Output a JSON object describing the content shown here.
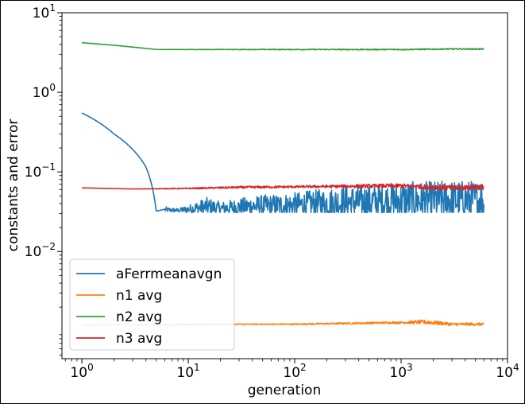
{
  "chart_data": {
    "type": "line",
    "title": "",
    "xlabel": "generation",
    "ylabel": "constants and error",
    "xscale": "log",
    "yscale": "log",
    "xlim": [
      0.65,
      10000
    ],
    "ylim": [
      0.00045,
      10
    ],
    "grid": false,
    "legend_position": "lower-left",
    "x_ticks": [
      {
        "value": 1,
        "base": "10",
        "exp": "0"
      },
      {
        "value": 10,
        "base": "10",
        "exp": "1"
      },
      {
        "value": 100,
        "base": "10",
        "exp": "2"
      },
      {
        "value": 1000,
        "base": "10",
        "exp": "3"
      },
      {
        "value": 10000,
        "base": "10",
        "exp": "4"
      }
    ],
    "y_ticks": [
      {
        "value": 10,
        "base": "10",
        "exp": "1"
      },
      {
        "value": 1,
        "base": "10",
        "exp": "0"
      },
      {
        "value": 0.1,
        "base": "10",
        "exp": "−1"
      },
      {
        "value": 0.01,
        "base": "10",
        "exp": "−2"
      }
    ],
    "series": [
      {
        "name": "aFerrmeanavgn",
        "color": "#1f77b4",
        "x": [
          1,
          2,
          4,
          5,
          6,
          8,
          10,
          15,
          20,
          40,
          100,
          300,
          1000,
          3000,
          6000
        ],
        "y": [
          0.55,
          0.3,
          0.115,
          0.032,
          0.034,
          0.032,
          0.033,
          0.036,
          0.034,
          0.037,
          0.038,
          0.042,
          0.045,
          0.046,
          0.046
        ],
        "noise": [
          0,
          0,
          0,
          0,
          0.0,
          0.004,
          0.006,
          0.01,
          0.008,
          0.01,
          0.014,
          0.018,
          0.02,
          0.022,
          0.022
        ]
      },
      {
        "name": "n1 avg",
        "color": "#ff7f0e",
        "x": [
          1,
          5,
          30,
          100,
          300,
          1000,
          1700,
          3000,
          6000
        ],
        "y": [
          0.0012,
          0.0012,
          0.00122,
          0.00122,
          0.00125,
          0.00128,
          0.0013,
          0.00122,
          0.00122
        ],
        "noise": [
          0,
          0,
          1e-05,
          2e-05,
          3e-05,
          4e-05,
          8e-05,
          5e-05,
          5e-05
        ]
      },
      {
        "name": "n2 avg",
        "color": "#2ca02c",
        "x": [
          1,
          2,
          5,
          10,
          30,
          100,
          300,
          1000,
          3000,
          6000
        ],
        "y": [
          4.2,
          3.9,
          3.45,
          3.45,
          3.45,
          3.45,
          3.45,
          3.45,
          3.5,
          3.5
        ],
        "noise": [
          0,
          0,
          0,
          0.02,
          0.03,
          0.04,
          0.05,
          0.05,
          0.06,
          0.06
        ]
      },
      {
        "name": "n3 avg",
        "color": "#d62728",
        "x": [
          1,
          3,
          10,
          30,
          100,
          300,
          1000,
          3000,
          6000
        ],
        "y": [
          0.063,
          0.061,
          0.062,
          0.064,
          0.065,
          0.066,
          0.067,
          0.063,
          0.065
        ],
        "noise": [
          0,
          0,
          0.001,
          0.002,
          0.002,
          0.003,
          0.004,
          0.005,
          0.005
        ]
      }
    ]
  }
}
